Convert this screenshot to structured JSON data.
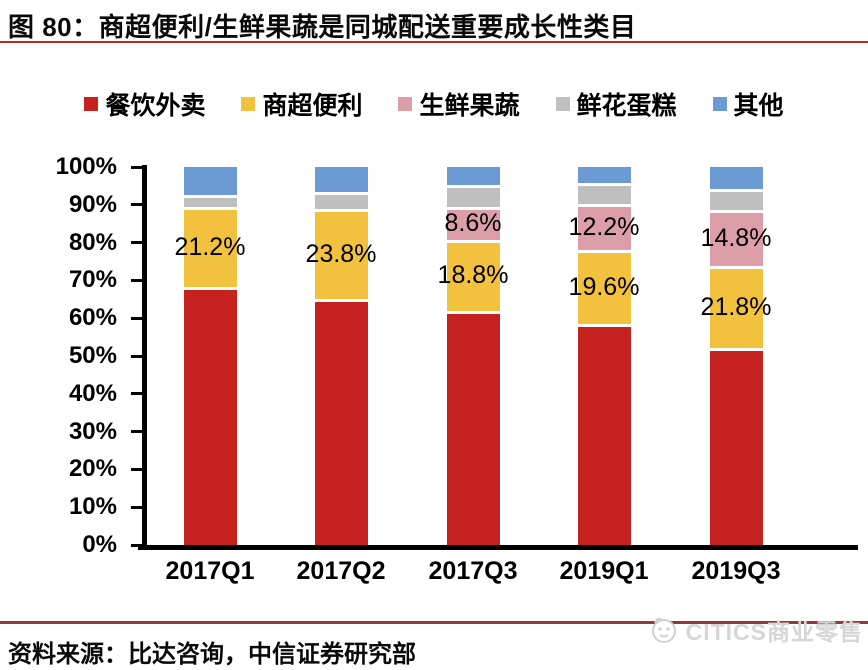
{
  "figure": {
    "title": "图 80：商超便利/生鲜果蔬是同城配送重要成长性类目",
    "source_note": "资料来源：比达咨询，中信证券研究部",
    "watermark": "CITICS商业零售"
  },
  "colors": {
    "series_red": "#C5211F",
    "series_yellow": "#F2C23E",
    "series_pink": "#DC9FAA",
    "series_gray": "#BFBFBF",
    "series_blue": "#6B9BD2",
    "title_rule": "#BE2C26",
    "footer_rule": "#8E3B37",
    "axis": "#000000",
    "watermark_gray": "#D6D6D6"
  },
  "chart_data": {
    "type": "bar",
    "variant": "stacked-percent",
    "title": "",
    "xlabel": "",
    "ylabel": "",
    "categories": [
      "2017Q1",
      "2017Q2",
      "2017Q3",
      "2019Q1",
      "2019Q3"
    ],
    "series": [
      {
        "name": "餐饮外卖",
        "color": "#C5211F",
        "values": [
          68.2,
          65.1,
          62.0,
          58.5,
          52.0
        ]
      },
      {
        "name": "商超便利",
        "color": "#F2C23E",
        "values": [
          21.2,
          23.8,
          18.8,
          19.6,
          21.8
        ]
      },
      {
        "name": "生鲜果蔬",
        "color": "#DC9FAA",
        "values": [
          0,
          0,
          8.6,
          12.2,
          14.8
        ]
      },
      {
        "name": "鲜花蛋糕",
        "color": "#BFBFBF",
        "values": [
          3.2,
          4.6,
          5.8,
          5.5,
          5.6
        ]
      },
      {
        "name": "其他",
        "color": "#6B9BD2",
        "values": [
          7.4,
          6.5,
          4.8,
          4.2,
          5.8
        ]
      }
    ],
    "data_labels": [
      {
        "category_index": 0,
        "series_index": 1,
        "text": "21.2%"
      },
      {
        "category_index": 1,
        "series_index": 1,
        "text": "23.8%"
      },
      {
        "category_index": 2,
        "series_index": 2,
        "text": "8.6%"
      },
      {
        "category_index": 2,
        "series_index": 1,
        "text": "18.8%"
      },
      {
        "category_index": 3,
        "series_index": 2,
        "text": "12.2%"
      },
      {
        "category_index": 3,
        "series_index": 1,
        "text": "19.6%"
      },
      {
        "category_index": 4,
        "series_index": 2,
        "text": "14.8%"
      },
      {
        "category_index": 4,
        "series_index": 1,
        "text": "21.8%"
      }
    ],
    "y_ticks": [
      "100%",
      "90%",
      "80%",
      "70%",
      "60%",
      "50%",
      "40%",
      "30%",
      "20%",
      "10%",
      "0%"
    ],
    "ylim": [
      0,
      100
    ],
    "grid": false,
    "legend_position": "top"
  }
}
